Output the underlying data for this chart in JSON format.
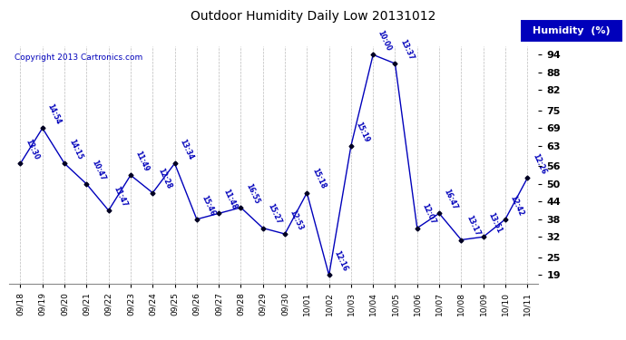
{
  "title": "Outdoor Humidity Daily Low 20131012",
  "copyright": "Copyright 2013 Cartronics.com",
  "legend_label": "Humidity  (%)",
  "dates": [
    "09/18",
    "09/19",
    "09/20",
    "09/21",
    "09/22",
    "09/23",
    "09/24",
    "09/25",
    "09/26",
    "09/27",
    "09/28",
    "09/29",
    "09/30",
    "10/01",
    "10/02",
    "10/03",
    "10/04",
    "10/05",
    "10/06",
    "10/07",
    "10/08",
    "10/09",
    "10/10",
    "10/11"
  ],
  "values": [
    57,
    69,
    57,
    50,
    41,
    53,
    47,
    57,
    38,
    40,
    42,
    35,
    33,
    47,
    19,
    63,
    94,
    91,
    35,
    40,
    31,
    32,
    38,
    52
  ],
  "times": [
    "13:30",
    "14:54",
    "14:15",
    "10:47",
    "11:47",
    "11:49",
    "12:28",
    "13:34",
    "15:46",
    "11:48",
    "16:55",
    "15:27",
    "12:53",
    "15:18",
    "12:16",
    "15:19",
    "10:00",
    "13:37",
    "12:07",
    "16:47",
    "13:17",
    "13:51",
    "12:42",
    "12:26"
  ],
  "yticks": [
    19,
    25,
    32,
    38,
    44,
    50,
    56,
    63,
    69,
    75,
    82,
    88,
    94
  ],
  "line_color": "#0000BB",
  "bg_color": "#ffffff",
  "grid_color": "#bbbbbb",
  "title_color": "#000000",
  "legend_bg": "#0000BB",
  "legend_text_color": "#ffffff",
  "copyright_color": "#0000BB",
  "label_color": "#0000BB",
  "ymin": 16,
  "ymax": 97
}
